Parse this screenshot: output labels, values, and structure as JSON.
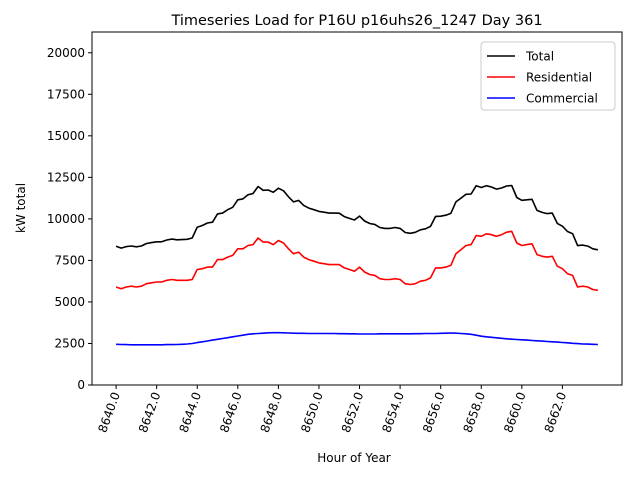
{
  "chart_data": {
    "type": "line",
    "title": "Timeseries Load for P16U p16uhs26_1247  Day 361",
    "xlabel": "Hour of Year",
    "ylabel": "kW total",
    "xlim": [
      8638.8125,
      8664.9375
    ],
    "ylim": [
      0,
      21250
    ],
    "grid": false,
    "legend_position": "top-right",
    "x_start": 8640,
    "x_step": 0.25,
    "xticks": [
      8640,
      8642,
      8644,
      8646,
      8648,
      8650,
      8652,
      8654,
      8656,
      8658,
      8660,
      8662
    ],
    "xtick_labels": [
      "8640.0",
      "8642.0",
      "8644.0",
      "8646.0",
      "8648.0",
      "8650.0",
      "8652.0",
      "8654.0",
      "8656.0",
      "8658.0",
      "8660.0",
      "8662.0"
    ],
    "yticks": [
      0,
      2500,
      5000,
      7500,
      10000,
      12500,
      15000,
      17500,
      20000
    ],
    "ytick_labels": [
      "0",
      "2500",
      "5000",
      "7500",
      "10000",
      "12500",
      "15000",
      "17500",
      "20000"
    ],
    "series": [
      {
        "name": "Total",
        "color": "#000000",
        "values": [
          8350,
          8240,
          8330,
          8370,
          8320,
          8370,
          8520,
          8570,
          8620,
          8620,
          8730,
          8780,
          8740,
          8750,
          8770,
          8850,
          9500,
          9600,
          9750,
          9800,
          10300,
          10350,
          10550,
          10700,
          11150,
          11200,
          11450,
          11530,
          11950,
          11720,
          11740,
          11600,
          11850,
          11690,
          11330,
          11020,
          11110,
          10810,
          10650,
          10550,
          10450,
          10400,
          10350,
          10350,
          10340,
          10140,
          10030,
          9930,
          10170,
          9870,
          9720,
          9670,
          9480,
          9430,
          9430,
          9480,
          9430,
          9180,
          9130,
          9190,
          9340,
          9400,
          9550,
          10150,
          10160,
          10220,
          10330,
          11020,
          11250,
          11480,
          11500,
          12000,
          11890,
          12000,
          11920,
          11790,
          11860,
          11980,
          12010,
          11290,
          11120,
          11150,
          11180,
          10510,
          10390,
          10320,
          10350,
          9730,
          9560,
          9240,
          9110,
          8390,
          8420,
          8360,
          8200,
          8140
        ]
      },
      {
        "name": "Residential",
        "color": "#ff0000",
        "values": [
          5900,
          5800,
          5900,
          5950,
          5900,
          5950,
          6100,
          6150,
          6200,
          6200,
          6300,
          6350,
          6300,
          6300,
          6300,
          6350,
          6950,
          7000,
          7100,
          7100,
          7550,
          7550,
          7700,
          7800,
          8200,
          8200,
          8400,
          8450,
          8850,
          8600,
          8600,
          8450,
          8700,
          8550,
          8200,
          7900,
          8000,
          7700,
          7550,
          7450,
          7350,
          7300,
          7250,
          7250,
          7250,
          7050,
          6950,
          6850,
          7100,
          6800,
          6650,
          6600,
          6400,
          6350,
          6350,
          6400,
          6350,
          6100,
          6050,
          6100,
          6250,
          6300,
          6450,
          7050,
          7050,
          7100,
          7200,
          7900,
          8150,
          8400,
          8450,
          9000,
          8950,
          9100,
          9050,
          8950,
          9050,
          9200,
          9250,
          8550,
          8400,
          8450,
          8500,
          7850,
          7750,
          7700,
          7750,
          7150,
          7000,
          6700,
          6600,
          5900,
          5950,
          5900,
          5750,
          5700
        ]
      },
      {
        "name": "Commercial",
        "color": "#0000ff",
        "values": [
          2450,
          2440,
          2430,
          2420,
          2420,
          2420,
          2420,
          2420,
          2420,
          2420,
          2430,
          2430,
          2440,
          2450,
          2470,
          2500,
          2550,
          2600,
          2650,
          2700,
          2750,
          2800,
          2850,
          2900,
          2950,
          3000,
          3050,
          3080,
          3100,
          3120,
          3140,
          3150,
          3150,
          3140,
          3130,
          3120,
          3110,
          3110,
          3100,
          3100,
          3100,
          3100,
          3100,
          3100,
          3090,
          3090,
          3080,
          3080,
          3070,
          3070,
          3070,
          3070,
          3080,
          3080,
          3080,
          3080,
          3080,
          3080,
          3080,
          3090,
          3090,
          3100,
          3100,
          3100,
          3110,
          3120,
          3130,
          3120,
          3100,
          3080,
          3050,
          3000,
          2940,
          2900,
          2870,
          2840,
          2810,
          2780,
          2760,
          2740,
          2720,
          2700,
          2680,
          2660,
          2640,
          2620,
          2600,
          2580,
          2560,
          2540,
          2510,
          2490,
          2470,
          2460,
          2450,
          2440
        ]
      }
    ]
  }
}
